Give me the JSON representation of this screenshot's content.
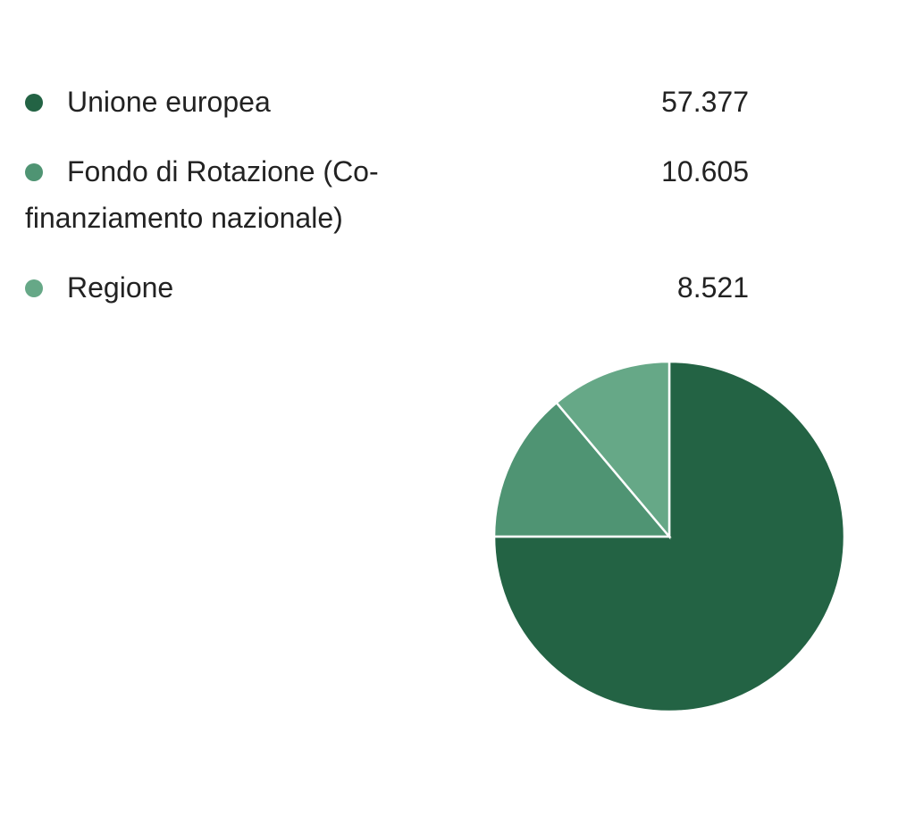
{
  "chart_data": {
    "type": "pie",
    "categories": [
      "Unione europea",
      "Fondo di Rotazione (Co-finanziamento nazionale)",
      "Regione"
    ],
    "values": [
      57377,
      10605,
      8521
    ],
    "value_labels": [
      "57.377",
      "10.605",
      "8.521"
    ],
    "colors": [
      "#236344",
      "#4f9473",
      "#66a887"
    ]
  }
}
